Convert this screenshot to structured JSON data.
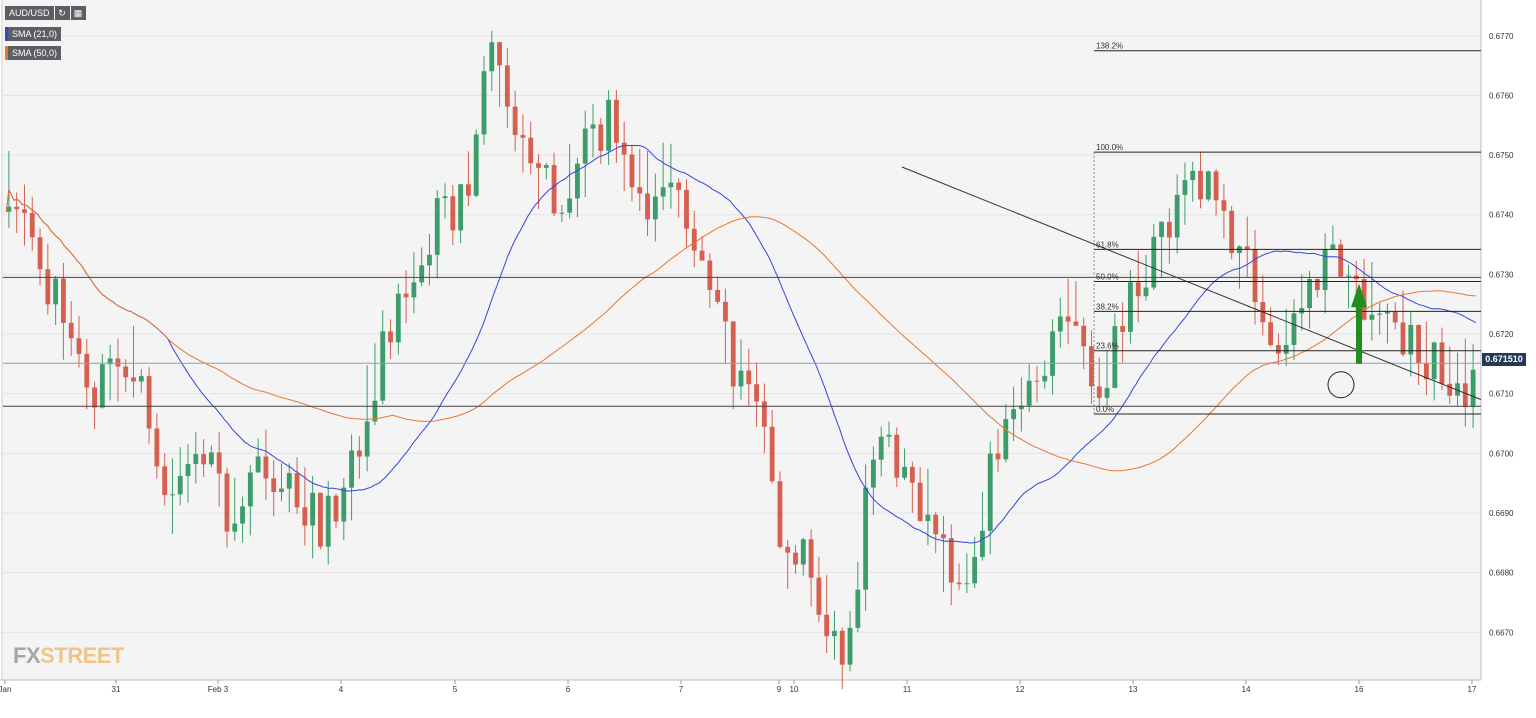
{
  "toolbar": {
    "symbol": "AUD/USD",
    "refresh_icon": "refresh-icon",
    "calendar_icon": "calendar-icon"
  },
  "indicators": [
    {
      "label": "SMA (21,0)",
      "color": "#3346d8"
    },
    {
      "label": "SMA (50,0)",
      "color": "#e8772e"
    }
  ],
  "logo": {
    "part1": "FX",
    "part2": "STREET"
  },
  "colors": {
    "background": "#f4f4f4",
    "up_candle": "#3c9c6a",
    "down_candle": "#d5604f",
    "sma21": "#3346d8",
    "sma50": "#e8772e",
    "arrow": "#1e8f1e",
    "price_tag": "#233a57"
  },
  "chart_data": {
    "type": "candlestick",
    "symbol": "AUD/USD",
    "ylim": [
      0.6662,
      0.6776
    ],
    "y_ticks": [
      "0.6770",
      "0.6760",
      "0.6750",
      "0.6740",
      "0.6730",
      "0.6720",
      "0.6710",
      "0.6700",
      "0.6690",
      "0.6680",
      "0.6670"
    ],
    "x_ticks": [
      "Jan",
      "31",
      "Feb 3",
      "4",
      "5",
      "6",
      "7",
      "9",
      "10",
      "11",
      "12",
      "13",
      "14",
      "16",
      "17"
    ],
    "current_price": "0.671510",
    "horizontal_levels": [
      0.67295,
      0.67079
    ],
    "fibonacci": [
      {
        "label": "138.2%",
        "price": 0.67675
      },
      {
        "label": "100.0%",
        "price": 0.67505
      },
      {
        "label": "61.8%",
        "price": 0.67342
      },
      {
        "label": "50.0%",
        "price": 0.67288
      },
      {
        "label": "38.2%",
        "price": 0.67238
      },
      {
        "label": "23.6%",
        "price": 0.67172
      },
      {
        "label": "0.0%",
        "price": 0.67066
      }
    ],
    "trendline": {
      "from": {
        "bar": 345,
        "price": 0.6748
      },
      "to": {
        "bar": 458,
        "price": 0.6713
      }
    },
    "series": [
      {
        "name": "SMA (21,0)",
        "color": "#3346d8"
      },
      {
        "name": "SMA (50,0)",
        "color": "#e8772e"
      }
    ],
    "annotations": [
      "green up arrow",
      "circle around last candles"
    ],
    "grid": true
  }
}
